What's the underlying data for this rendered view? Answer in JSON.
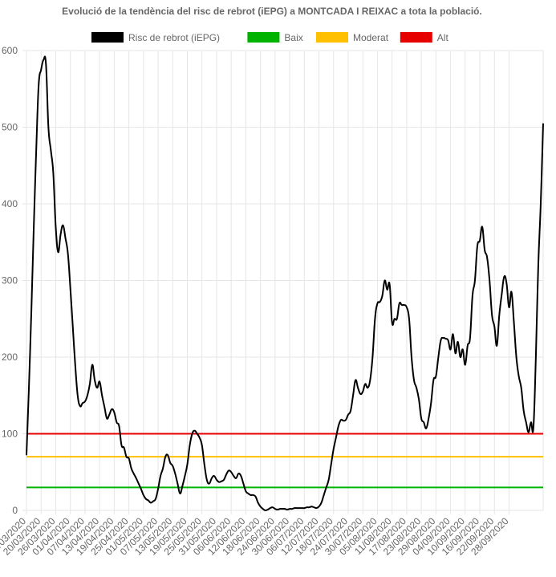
{
  "chart_data": {
    "type": "line",
    "title": "Evolució de la tendència del risc de rebrot (iEPG) a MONTCADA I REIXAC a tota la població.",
    "xlabel": "",
    "ylabel": "",
    "ylim": [
      0,
      600
    ],
    "y_ticks": [
      0,
      100,
      200,
      300,
      400,
      500,
      600
    ],
    "x_tick_labels": [
      "14/03/2020",
      "20/03/2020",
      "26/03/2020",
      "01/04/2020",
      "07/04/2020",
      "13/04/2020",
      "19/04/2020",
      "25/04/2020",
      "01/05/2020",
      "07/05/2020",
      "13/05/2020",
      "19/05/2020",
      "25/05/2020",
      "31/05/2020",
      "06/06/2020",
      "12/06/2020",
      "18/06/2020",
      "24/06/2020",
      "30/06/2020",
      "06/07/2020",
      "12/07/2020",
      "18/07/2020",
      "24/07/2020",
      "30/07/2020",
      "05/08/2020",
      "11/08/2020",
      "17/08/2020",
      "23/08/2020",
      "29/08/2020",
      "04/09/2020",
      "10/09/2020",
      "16/09/2020",
      "22/09/2020",
      "28/09/2020"
    ],
    "grid": true,
    "legend": {
      "placement": "top",
      "items": [
        {
          "label": "Risc de rebrot (iEPG)",
          "color": "#000000"
        },
        {
          "label": "Baix",
          "color": "#00b300"
        },
        {
          "label": "Moderat",
          "color": "#ffc000"
        },
        {
          "label": "Alt",
          "color": "#e60000"
        }
      ]
    },
    "series": [
      {
        "name": "Risc de rebrot (iEPG)",
        "color": "#000000",
        "start_date": "2020-03-14",
        "values": [
          72,
          160,
          260,
          370,
          470,
          555,
          575,
          588,
          582,
          500,
          470,
          440,
          370,
          337,
          360,
          372,
          355,
          335,
          290,
          240,
          190,
          150,
          136,
          140,
          142,
          150,
          165,
          190,
          170,
          160,
          168,
          150,
          135,
          120,
          125,
          132,
          128,
          115,
          110,
          85,
          82,
          70,
          68,
          55,
          48,
          42,
          35,
          28,
          20,
          15,
          13,
          10,
          12,
          15,
          28,
          45,
          55,
          70,
          72,
          62,
          58,
          48,
          35,
          22,
          32,
          45,
          60,
          85,
          100,
          104,
          100,
          95,
          85,
          60,
          40,
          35,
          42,
          45,
          40,
          37,
          38,
          40,
          47,
          52,
          50,
          45,
          42,
          48,
          45,
          35,
          25,
          22,
          20,
          20,
          18,
          10,
          5,
          2,
          0,
          1,
          3,
          4,
          2,
          1,
          2,
          2,
          2,
          1,
          2,
          2,
          3,
          3,
          3,
          3,
          3,
          4,
          4,
          5,
          4,
          3,
          5,
          10,
          20,
          30,
          40,
          60,
          80,
          95,
          110,
          118,
          117,
          118,
          125,
          130,
          150,
          170,
          160,
          152,
          155,
          165,
          160,
          170,
          200,
          250,
          270,
          272,
          280,
          300,
          288,
          295,
          245,
          250,
          250,
          270,
          268,
          268,
          265,
          250,
          200,
          170,
          160,
          145,
          120,
          115,
          107,
          120,
          140,
          170,
          175,
          200,
          222,
          225,
          224,
          222,
          210,
          230,
          205,
          220,
          200,
          210,
          190,
          215,
          225,
          280,
          300,
          345,
          352,
          370,
          340,
          330,
          300,
          255,
          240,
          215,
          255,
          282,
          305,
          296,
          265,
          285,
          245,
          200,
          175,
          160,
          130,
          115,
          102,
          115,
          108,
          200,
          320,
          400,
          505
        ]
      },
      {
        "name": "Baix",
        "color": "#00b300",
        "values": [
          30
        ]
      },
      {
        "name": "Moderat",
        "color": "#ffc000",
        "values": [
          70
        ]
      },
      {
        "name": "Alt",
        "color": "#e60000",
        "values": [
          100
        ]
      }
    ]
  }
}
